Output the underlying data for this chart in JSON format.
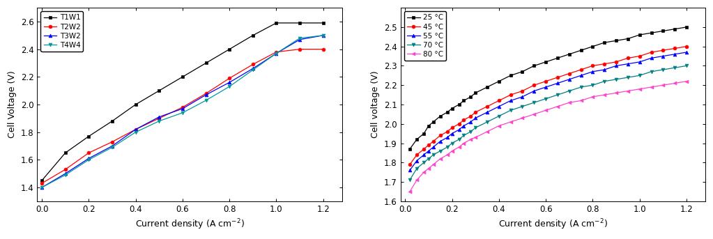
{
  "chart1": {
    "ylabel": "Cell Voltage (V)",
    "xlabel": "Current density (A cm$^{-2}$)",
    "xlim": [
      -0.02,
      1.28
    ],
    "ylim": [
      1.3,
      2.7
    ],
    "yticks": [
      1.4,
      1.6,
      1.8,
      2.0,
      2.2,
      2.4,
      2.6
    ],
    "xticks": [
      0.0,
      0.2,
      0.4,
      0.6,
      0.8,
      1.0,
      1.2
    ],
    "series": [
      {
        "label": "T1W1",
        "color": "#000000",
        "marker": "s",
        "x": [
          0.0,
          0.1,
          0.2,
          0.3,
          0.4,
          0.5,
          0.6,
          0.7,
          0.8,
          0.9,
          1.0,
          1.1,
          1.2
        ],
        "y": [
          1.45,
          1.65,
          1.77,
          1.88,
          2.0,
          2.1,
          2.2,
          2.3,
          2.4,
          2.5,
          2.59,
          2.59,
          2.59
        ]
      },
      {
        "label": "T2W2",
        "color": "#ff0000",
        "marker": "o",
        "x": [
          0.0,
          0.1,
          0.2,
          0.3,
          0.4,
          0.5,
          0.6,
          0.7,
          0.8,
          0.9,
          1.0,
          1.1,
          1.2
        ],
        "y": [
          1.43,
          1.53,
          1.65,
          1.73,
          1.82,
          1.9,
          1.98,
          2.08,
          2.19,
          2.29,
          2.38,
          2.4,
          2.4
        ]
      },
      {
        "label": "T3W2",
        "color": "#0000ff",
        "marker": "^",
        "x": [
          0.0,
          0.1,
          0.2,
          0.3,
          0.4,
          0.5,
          0.6,
          0.7,
          0.8,
          0.9,
          1.0,
          1.1,
          1.2
        ],
        "y": [
          1.4,
          1.5,
          1.61,
          1.7,
          1.82,
          1.91,
          1.97,
          2.07,
          2.16,
          2.26,
          2.37,
          2.47,
          2.5
        ]
      },
      {
        "label": "T4W4",
        "color": "#009999",
        "marker": "v",
        "x": [
          0.0,
          0.1,
          0.2,
          0.3,
          0.4,
          0.5,
          0.6,
          0.7,
          0.8,
          0.9,
          1.0,
          1.1,
          1.2
        ],
        "y": [
          1.4,
          1.49,
          1.6,
          1.69,
          1.8,
          1.88,
          1.94,
          2.03,
          2.13,
          2.25,
          2.37,
          2.48,
          2.5
        ]
      }
    ]
  },
  "chart2": {
    "ylabel": "Cell voltage (V)",
    "xlabel": "Current density (A cm$^{-2}$)",
    "xlim": [
      -0.02,
      1.28
    ],
    "ylim": [
      1.6,
      2.6
    ],
    "yticks": [
      1.6,
      1.7,
      1.8,
      1.9,
      2.0,
      2.1,
      2.2,
      2.3,
      2.4,
      2.5
    ],
    "xticks": [
      0.0,
      0.2,
      0.4,
      0.6,
      0.8,
      1.0,
      1.2
    ],
    "series": [
      {
        "label": "25 °C",
        "color": "#000000",
        "marker": "s",
        "x": [
          0.02,
          0.05,
          0.08,
          0.1,
          0.12,
          0.15,
          0.18,
          0.2,
          0.23,
          0.25,
          0.28,
          0.3,
          0.35,
          0.4,
          0.45,
          0.5,
          0.55,
          0.6,
          0.65,
          0.7,
          0.75,
          0.8,
          0.85,
          0.9,
          0.95,
          1.0,
          1.05,
          1.1,
          1.15,
          1.2
        ],
        "y": [
          1.87,
          1.92,
          1.95,
          1.99,
          2.01,
          2.04,
          2.06,
          2.08,
          2.1,
          2.12,
          2.14,
          2.16,
          2.19,
          2.22,
          2.25,
          2.27,
          2.3,
          2.32,
          2.34,
          2.36,
          2.38,
          2.4,
          2.42,
          2.43,
          2.44,
          2.46,
          2.47,
          2.48,
          2.49,
          2.5
        ]
      },
      {
        "label": "45 °C",
        "color": "#ff0000",
        "marker": "o",
        "x": [
          0.02,
          0.05,
          0.08,
          0.1,
          0.12,
          0.15,
          0.18,
          0.2,
          0.23,
          0.25,
          0.28,
          0.3,
          0.35,
          0.4,
          0.45,
          0.5,
          0.55,
          0.6,
          0.65,
          0.7,
          0.75,
          0.8,
          0.85,
          0.9,
          0.95,
          1.0,
          1.05,
          1.1,
          1.15,
          1.2
        ],
        "y": [
          1.79,
          1.84,
          1.87,
          1.89,
          1.91,
          1.94,
          1.96,
          1.98,
          2.0,
          2.02,
          2.04,
          2.06,
          2.09,
          2.12,
          2.15,
          2.17,
          2.2,
          2.22,
          2.24,
          2.26,
          2.28,
          2.3,
          2.31,
          2.32,
          2.34,
          2.35,
          2.37,
          2.38,
          2.39,
          2.4
        ]
      },
      {
        "label": "55 °C",
        "color": "#0000ff",
        "marker": "^",
        "x": [
          0.02,
          0.05,
          0.08,
          0.1,
          0.12,
          0.15,
          0.18,
          0.2,
          0.23,
          0.25,
          0.28,
          0.3,
          0.35,
          0.4,
          0.45,
          0.5,
          0.55,
          0.6,
          0.65,
          0.7,
          0.75,
          0.8,
          0.85,
          0.9,
          0.95,
          1.0,
          1.05,
          1.1,
          1.15,
          1.2
        ],
        "y": [
          1.76,
          1.81,
          1.84,
          1.86,
          1.88,
          1.91,
          1.93,
          1.95,
          1.97,
          1.99,
          2.01,
          2.03,
          2.06,
          2.09,
          2.12,
          2.14,
          2.17,
          2.19,
          2.21,
          2.23,
          2.25,
          2.27,
          2.28,
          2.3,
          2.31,
          2.32,
          2.34,
          2.35,
          2.36,
          2.37
        ]
      },
      {
        "label": "70 °C",
        "color": "#008080",
        "marker": "v",
        "x": [
          0.02,
          0.05,
          0.08,
          0.1,
          0.12,
          0.15,
          0.18,
          0.2,
          0.23,
          0.25,
          0.28,
          0.3,
          0.35,
          0.4,
          0.45,
          0.5,
          0.55,
          0.6,
          0.65,
          0.7,
          0.75,
          0.8,
          0.85,
          0.9,
          0.95,
          1.0,
          1.05,
          1.1,
          1.15,
          1.2
        ],
        "y": [
          1.71,
          1.77,
          1.8,
          1.82,
          1.84,
          1.86,
          1.88,
          1.9,
          1.92,
          1.94,
          1.96,
          1.98,
          2.01,
          2.04,
          2.07,
          2.09,
          2.11,
          2.13,
          2.15,
          2.17,
          2.19,
          2.2,
          2.22,
          2.23,
          2.24,
          2.25,
          2.27,
          2.28,
          2.29,
          2.3
        ]
      },
      {
        "label": "80 °C",
        "color": "#ff44cc",
        "marker": "<",
        "x": [
          0.02,
          0.05,
          0.08,
          0.1,
          0.12,
          0.15,
          0.18,
          0.2,
          0.23,
          0.25,
          0.28,
          0.3,
          0.35,
          0.4,
          0.45,
          0.5,
          0.55,
          0.6,
          0.65,
          0.7,
          0.75,
          0.8,
          0.85,
          0.9,
          0.95,
          1.0,
          1.05,
          1.1,
          1.15,
          1.2
        ],
        "y": [
          1.65,
          1.71,
          1.75,
          1.77,
          1.79,
          1.82,
          1.84,
          1.86,
          1.88,
          1.9,
          1.92,
          1.93,
          1.96,
          1.99,
          2.01,
          2.03,
          2.05,
          2.07,
          2.09,
          2.11,
          2.12,
          2.14,
          2.15,
          2.16,
          2.17,
          2.18,
          2.19,
          2.2,
          2.21,
          2.22
        ]
      }
    ]
  }
}
